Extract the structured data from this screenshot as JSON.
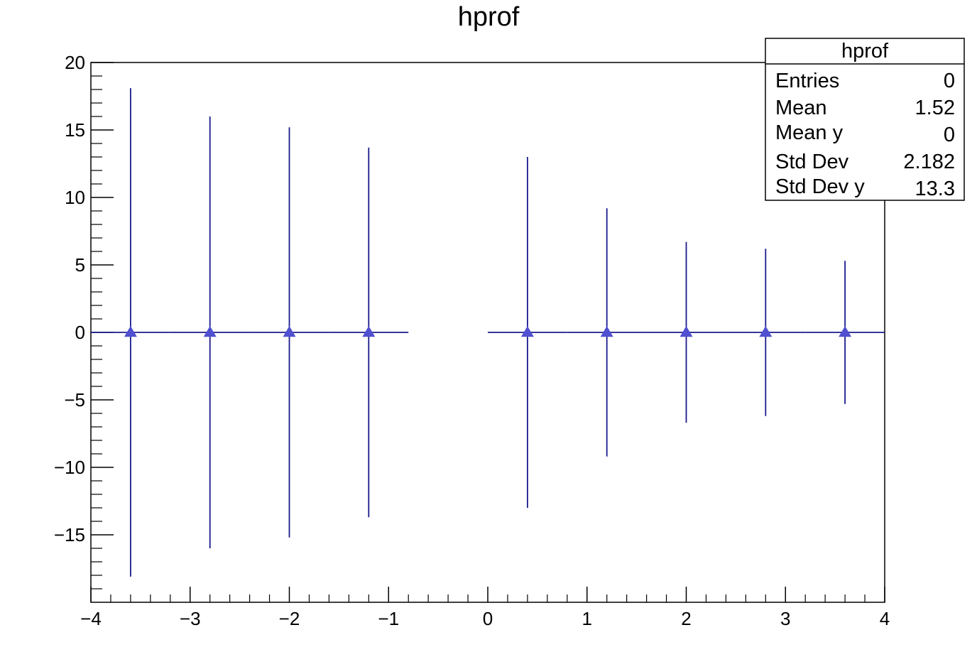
{
  "chart_data": {
    "type": "scatter",
    "title": "hprof",
    "xlabel": "",
    "ylabel": "",
    "xlim": [
      -4,
      4
    ],
    "ylim": [
      -20,
      20
    ],
    "x_tick_labels": [
      "−4",
      "−3",
      "−2",
      "−1",
      "0",
      "1",
      "2",
      "3",
      "4"
    ],
    "y_tick_labels": [
      "−15",
      "−10",
      "−5",
      "0",
      "5",
      "10",
      "15",
      "20"
    ],
    "bin_width": 0.8,
    "series": [
      {
        "marker": "triangle-up",
        "marker_color": "#5050d0",
        "line_color": "#1a1a8c",
        "x": [
          -3.6,
          -2.8,
          -2.0,
          -1.2,
          0.4,
          1.2,
          2.0,
          2.8,
          3.6
        ],
        "y": [
          0,
          0,
          0,
          0,
          0,
          0,
          0,
          0,
          0
        ],
        "y_err": [
          18.1,
          16.0,
          15.2,
          13.7,
          13.0,
          9.2,
          6.7,
          6.2,
          5.3
        ]
      }
    ],
    "grid": false,
    "legend": "none"
  },
  "stats_box": {
    "title": "hprof",
    "placement": "top-right",
    "rows": [
      {
        "label": "Entries",
        "value": "0"
      },
      {
        "label": "Mean",
        "value": "1.52"
      },
      {
        "label": "Mean y",
        "value": "0"
      },
      {
        "label": "Std Dev",
        "value": "2.182"
      },
      {
        "label": "Std Dev y",
        "value": "13.3"
      }
    ]
  }
}
